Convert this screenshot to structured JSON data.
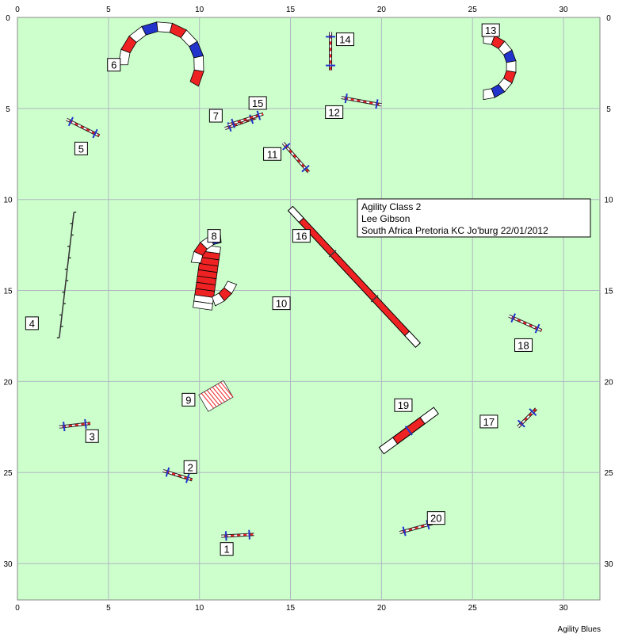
{
  "info": {
    "class": "Agility Class 2",
    "judge": "Lee Gibson",
    "event": "South Africa Pretoria KC Jo'burg 22/01/2012"
  },
  "footer": "Agility Blues",
  "colors": {
    "field": "#ccffcc",
    "grid": "#b0b8c0",
    "red": "#ee2222",
    "blue": "#2233cc",
    "pole": "#333333"
  },
  "arena": {
    "x_range": [
      0,
      32
    ],
    "y_range": [
      0,
      32
    ]
  },
  "axis": {
    "x_ticks": [
      "0",
      "5",
      "10",
      "15",
      "20",
      "25",
      "30"
    ],
    "y_ticks": [
      "0",
      "5",
      "10",
      "15",
      "20",
      "25",
      "30"
    ]
  },
  "obstacles": [
    {
      "num": "1",
      "type": "jump",
      "from": [
        11.2,
        28.5
      ],
      "to": [
        13.0,
        28.4
      ],
      "label": [
        11.5,
        29.2
      ]
    },
    {
      "num": "2",
      "type": "jump",
      "from": [
        8.0,
        24.9
      ],
      "to": [
        9.6,
        25.4
      ],
      "label": [
        9.5,
        24.7
      ]
    },
    {
      "num": "3",
      "type": "jump",
      "from": [
        2.3,
        22.5
      ],
      "to": [
        4.0,
        22.3
      ],
      "label": [
        4.1,
        23.0
      ]
    },
    {
      "num": "4",
      "type": "weave",
      "from": [
        2.3,
        17.6
      ],
      "to": [
        3.1,
        10.7
      ],
      "label": [
        0.8,
        16.8
      ]
    },
    {
      "num": "5",
      "type": "jump",
      "from": [
        2.7,
        5.6
      ],
      "to": [
        4.5,
        6.5
      ],
      "label": [
        3.5,
        7.2
      ]
    },
    {
      "num": "6",
      "type": "tunnel",
      "label": [
        5.3,
        2.6
      ]
    },
    {
      "num": "7",
      "type": "jump",
      "from": [
        11.4,
        6.1
      ],
      "to": [
        13.1,
        5.5
      ],
      "label": [
        10.9,
        5.4
      ]
    },
    {
      "num": "8",
      "type": "tunnel",
      "label": [
        10.8,
        12.0
      ]
    },
    {
      "num": "9",
      "type": "tire",
      "label": [
        9.4,
        21.0
      ]
    },
    {
      "num": "10",
      "type": "tunnel",
      "label": [
        14.5,
        15.7
      ]
    },
    {
      "num": "11",
      "type": "jump",
      "from": [
        14.6,
        6.9
      ],
      "to": [
        16.0,
        8.5
      ],
      "label": [
        14.0,
        7.5
      ]
    },
    {
      "num": "12",
      "type": "jump",
      "from": [
        17.8,
        4.4
      ],
      "to": [
        20.0,
        4.8
      ],
      "label": [
        17.4,
        5.2
      ]
    },
    {
      "num": "13",
      "type": "tunnel",
      "label": [
        26.0,
        0.7
      ]
    },
    {
      "num": "14",
      "type": "jump",
      "from": [
        17.2,
        0.8
      ],
      "to": [
        17.2,
        2.9
      ],
      "label": [
        18.0,
        1.2
      ]
    },
    {
      "num": "15",
      "type": "jump",
      "from": [
        11.6,
        5.9
      ],
      "to": [
        13.5,
        5.3
      ],
      "label": [
        13.2,
        4.7
      ]
    },
    {
      "num": "16",
      "type": "dogwalk",
      "from": [
        15.0,
        10.5
      ],
      "to": [
        22.0,
        18.0
      ],
      "label": [
        15.6,
        12.0
      ]
    },
    {
      "num": "17",
      "type": "jump",
      "from": [
        27.5,
        22.5
      ],
      "to": [
        28.5,
        21.5
      ],
      "label": [
        25.9,
        22.2
      ]
    },
    {
      "num": "18",
      "type": "jump",
      "from": [
        27.0,
        16.4
      ],
      "to": [
        28.8,
        17.2
      ],
      "label": [
        27.8,
        18.0
      ]
    },
    {
      "num": "19",
      "type": "seesaw",
      "from": [
        20.0,
        23.8
      ],
      "to": [
        23.0,
        21.6
      ],
      "label": [
        21.2,
        21.3
      ]
    },
    {
      "num": "20",
      "type": "jump",
      "from": [
        21.0,
        28.3
      ],
      "to": [
        22.8,
        27.8
      ],
      "label": [
        23.0,
        27.5
      ]
    }
  ]
}
